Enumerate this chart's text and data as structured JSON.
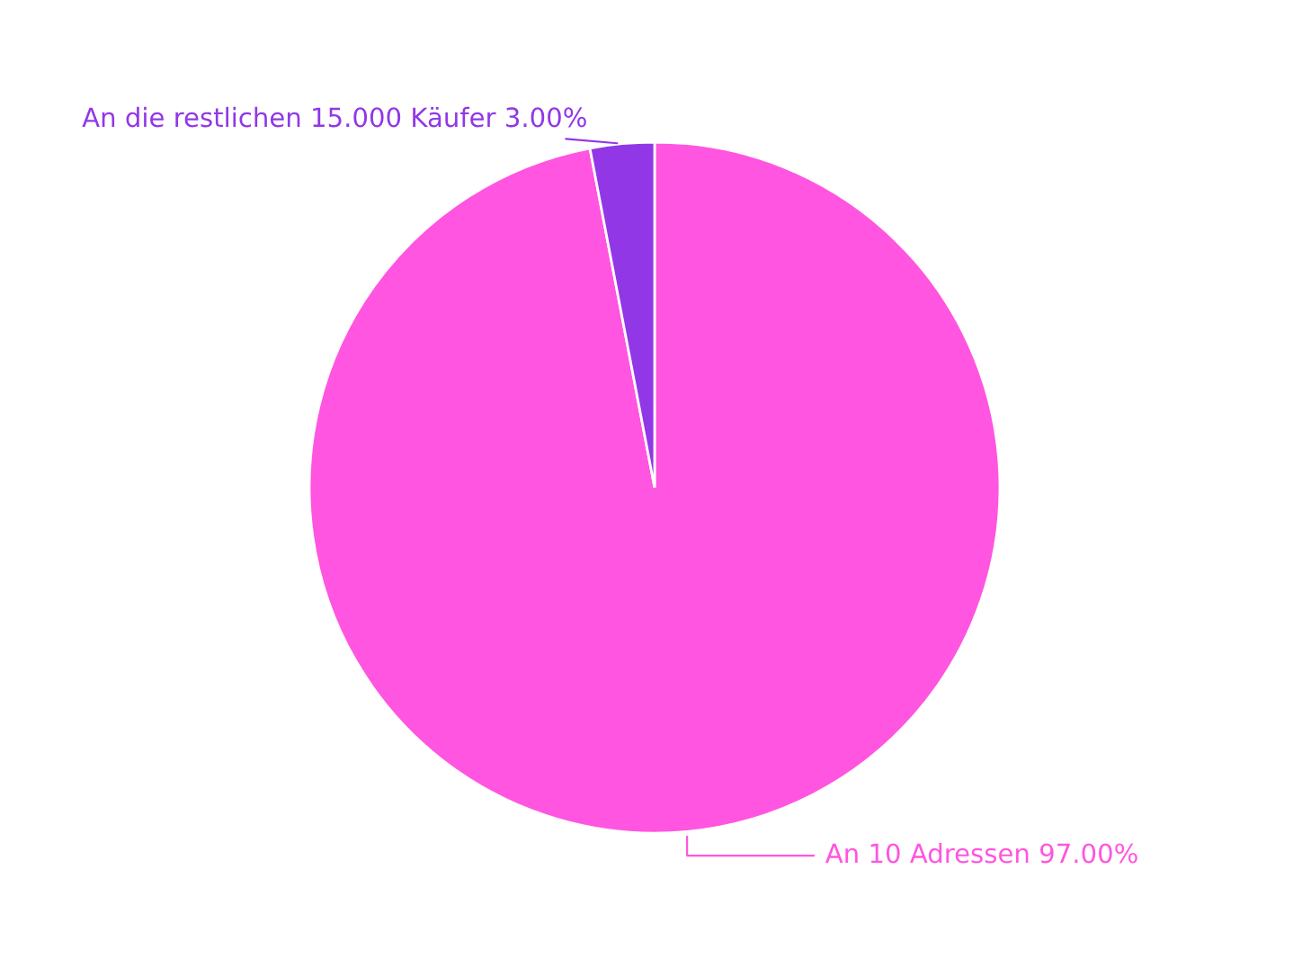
{
  "chart_data": {
    "type": "pie",
    "categories": [
      "An 10 Adressen",
      "An die restlichen 15.000 Käufer"
    ],
    "values": [
      97,
      3
    ],
    "value_labels": [
      "97.00%",
      "3.00%"
    ],
    "colors": [
      "#ff55e0",
      "#9237e6"
    ]
  }
}
